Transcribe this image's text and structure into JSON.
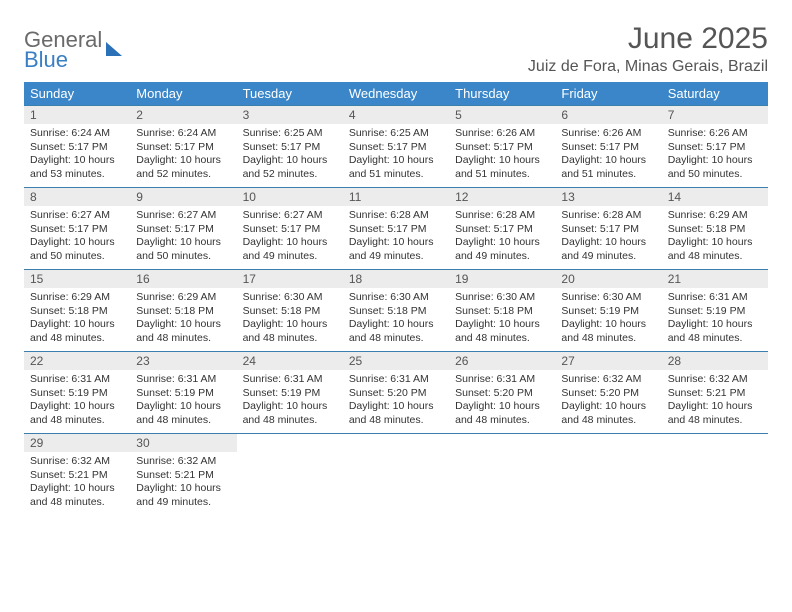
{
  "logo": {
    "line1": "General",
    "line2": "Blue"
  },
  "title": "June 2025",
  "location": "Juiz de Fora, Minas Gerais, Brazil",
  "weekdays": [
    "Sunday",
    "Monday",
    "Tuesday",
    "Wednesday",
    "Thursday",
    "Friday",
    "Saturday"
  ],
  "colors": {
    "header_bg": "#3a86c8",
    "header_fg": "#ffffff",
    "daynum_bg": "#ececec",
    "row_border": "#3a7fb0",
    "logo_general": "#6a6a6a",
    "logo_blue": "#3a7fc4"
  },
  "days": [
    {
      "n": "1",
      "sunrise": "Sunrise: 6:24 AM",
      "sunset": "Sunset: 5:17 PM",
      "daylight": "Daylight: 10 hours and 53 minutes."
    },
    {
      "n": "2",
      "sunrise": "Sunrise: 6:24 AM",
      "sunset": "Sunset: 5:17 PM",
      "daylight": "Daylight: 10 hours and 52 minutes."
    },
    {
      "n": "3",
      "sunrise": "Sunrise: 6:25 AM",
      "sunset": "Sunset: 5:17 PM",
      "daylight": "Daylight: 10 hours and 52 minutes."
    },
    {
      "n": "4",
      "sunrise": "Sunrise: 6:25 AM",
      "sunset": "Sunset: 5:17 PM",
      "daylight": "Daylight: 10 hours and 51 minutes."
    },
    {
      "n": "5",
      "sunrise": "Sunrise: 6:26 AM",
      "sunset": "Sunset: 5:17 PM",
      "daylight": "Daylight: 10 hours and 51 minutes."
    },
    {
      "n": "6",
      "sunrise": "Sunrise: 6:26 AM",
      "sunset": "Sunset: 5:17 PM",
      "daylight": "Daylight: 10 hours and 51 minutes."
    },
    {
      "n": "7",
      "sunrise": "Sunrise: 6:26 AM",
      "sunset": "Sunset: 5:17 PM",
      "daylight": "Daylight: 10 hours and 50 minutes."
    },
    {
      "n": "8",
      "sunrise": "Sunrise: 6:27 AM",
      "sunset": "Sunset: 5:17 PM",
      "daylight": "Daylight: 10 hours and 50 minutes."
    },
    {
      "n": "9",
      "sunrise": "Sunrise: 6:27 AM",
      "sunset": "Sunset: 5:17 PM",
      "daylight": "Daylight: 10 hours and 50 minutes."
    },
    {
      "n": "10",
      "sunrise": "Sunrise: 6:27 AM",
      "sunset": "Sunset: 5:17 PM",
      "daylight": "Daylight: 10 hours and 49 minutes."
    },
    {
      "n": "11",
      "sunrise": "Sunrise: 6:28 AM",
      "sunset": "Sunset: 5:17 PM",
      "daylight": "Daylight: 10 hours and 49 minutes."
    },
    {
      "n": "12",
      "sunrise": "Sunrise: 6:28 AM",
      "sunset": "Sunset: 5:17 PM",
      "daylight": "Daylight: 10 hours and 49 minutes."
    },
    {
      "n": "13",
      "sunrise": "Sunrise: 6:28 AM",
      "sunset": "Sunset: 5:17 PM",
      "daylight": "Daylight: 10 hours and 49 minutes."
    },
    {
      "n": "14",
      "sunrise": "Sunrise: 6:29 AM",
      "sunset": "Sunset: 5:18 PM",
      "daylight": "Daylight: 10 hours and 48 minutes."
    },
    {
      "n": "15",
      "sunrise": "Sunrise: 6:29 AM",
      "sunset": "Sunset: 5:18 PM",
      "daylight": "Daylight: 10 hours and 48 minutes."
    },
    {
      "n": "16",
      "sunrise": "Sunrise: 6:29 AM",
      "sunset": "Sunset: 5:18 PM",
      "daylight": "Daylight: 10 hours and 48 minutes."
    },
    {
      "n": "17",
      "sunrise": "Sunrise: 6:30 AM",
      "sunset": "Sunset: 5:18 PM",
      "daylight": "Daylight: 10 hours and 48 minutes."
    },
    {
      "n": "18",
      "sunrise": "Sunrise: 6:30 AM",
      "sunset": "Sunset: 5:18 PM",
      "daylight": "Daylight: 10 hours and 48 minutes."
    },
    {
      "n": "19",
      "sunrise": "Sunrise: 6:30 AM",
      "sunset": "Sunset: 5:18 PM",
      "daylight": "Daylight: 10 hours and 48 minutes."
    },
    {
      "n": "20",
      "sunrise": "Sunrise: 6:30 AM",
      "sunset": "Sunset: 5:19 PM",
      "daylight": "Daylight: 10 hours and 48 minutes."
    },
    {
      "n": "21",
      "sunrise": "Sunrise: 6:31 AM",
      "sunset": "Sunset: 5:19 PM",
      "daylight": "Daylight: 10 hours and 48 minutes."
    },
    {
      "n": "22",
      "sunrise": "Sunrise: 6:31 AM",
      "sunset": "Sunset: 5:19 PM",
      "daylight": "Daylight: 10 hours and 48 minutes."
    },
    {
      "n": "23",
      "sunrise": "Sunrise: 6:31 AM",
      "sunset": "Sunset: 5:19 PM",
      "daylight": "Daylight: 10 hours and 48 minutes."
    },
    {
      "n": "24",
      "sunrise": "Sunrise: 6:31 AM",
      "sunset": "Sunset: 5:19 PM",
      "daylight": "Daylight: 10 hours and 48 minutes."
    },
    {
      "n": "25",
      "sunrise": "Sunrise: 6:31 AM",
      "sunset": "Sunset: 5:20 PM",
      "daylight": "Daylight: 10 hours and 48 minutes."
    },
    {
      "n": "26",
      "sunrise": "Sunrise: 6:31 AM",
      "sunset": "Sunset: 5:20 PM",
      "daylight": "Daylight: 10 hours and 48 minutes."
    },
    {
      "n": "27",
      "sunrise": "Sunrise: 6:32 AM",
      "sunset": "Sunset: 5:20 PM",
      "daylight": "Daylight: 10 hours and 48 minutes."
    },
    {
      "n": "28",
      "sunrise": "Sunrise: 6:32 AM",
      "sunset": "Sunset: 5:21 PM",
      "daylight": "Daylight: 10 hours and 48 minutes."
    },
    {
      "n": "29",
      "sunrise": "Sunrise: 6:32 AM",
      "sunset": "Sunset: 5:21 PM",
      "daylight": "Daylight: 10 hours and 48 minutes."
    },
    {
      "n": "30",
      "sunrise": "Sunrise: 6:32 AM",
      "sunset": "Sunset: 5:21 PM",
      "daylight": "Daylight: 10 hours and 49 minutes."
    }
  ]
}
